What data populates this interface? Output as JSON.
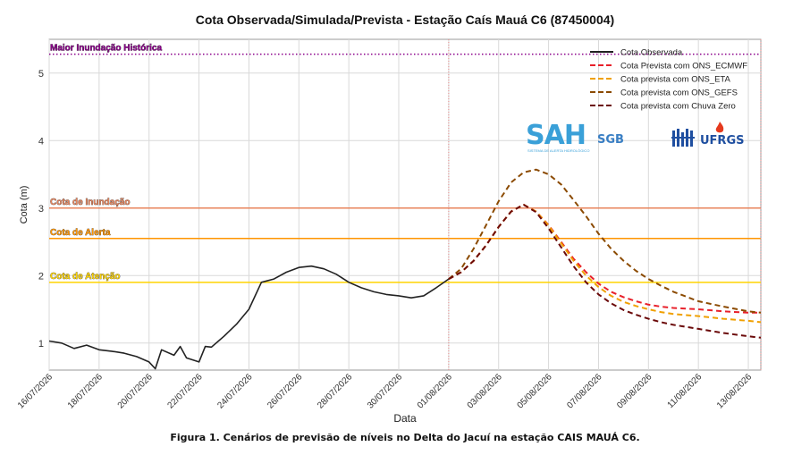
{
  "chart_data": {
    "type": "line",
    "title": "Cota Observada/Simulada/Prevista - Estação Caís Mauá C6 (87450004)",
    "xlabel": "Data",
    "ylabel": "Cota (m)",
    "x_ticks": [
      "16/07/2026",
      "18/07/2026",
      "20/07/2026",
      "22/07/2026",
      "24/07/2026",
      "26/07/2026",
      "28/07/2026",
      "30/07/2026",
      "01/08/2026",
      "03/08/2026",
      "05/08/2026",
      "07/08/2026",
      "09/08/2026",
      "11/08/2026",
      "13/08/2026"
    ],
    "y_ticks": [
      1,
      2,
      3,
      4,
      5
    ],
    "xlim": [
      "2026-07-16",
      "2026-08-13T12"
    ],
    "ylim": [
      0.6,
      5.5
    ],
    "grid": true,
    "legend_position": "top-right",
    "reference_lines": [
      {
        "label": "Maior Inundação Histórica",
        "y": 5.28,
        "color": "#8b008b",
        "style": "dotted"
      },
      {
        "label": "Cota de Inundação",
        "y": 3.0,
        "color": "#e8845c",
        "style": "solid"
      },
      {
        "label": "Cota de Alerta",
        "y": 2.55,
        "color": "#ff9500",
        "style": "solid"
      },
      {
        "label": "Cota de Atenção",
        "y": 1.9,
        "color": "#ffd400",
        "style": "solid"
      }
    ],
    "vertical_markers": [
      "2026-08-01",
      "2026-08-13T12"
    ],
    "series": [
      {
        "name": "Cota Observada",
        "color": "#222222",
        "style": "solid",
        "points": [
          [
            "2026-07-16",
            1.03
          ],
          [
            "2026-07-16T12",
            1.0
          ],
          [
            "2026-07-17",
            0.92
          ],
          [
            "2026-07-17T12",
            0.97
          ],
          [
            "2026-07-18",
            0.9
          ],
          [
            "2026-07-18T12",
            0.88
          ],
          [
            "2026-07-19",
            0.85
          ],
          [
            "2026-07-19T12",
            0.8
          ],
          [
            "2026-07-20",
            0.72
          ],
          [
            "2026-07-20T06",
            0.62
          ],
          [
            "2026-07-20T12",
            0.9
          ],
          [
            "2026-07-21",
            0.82
          ],
          [
            "2026-07-21T06",
            0.95
          ],
          [
            "2026-07-21T12",
            0.78
          ],
          [
            "2026-07-22",
            0.72
          ],
          [
            "2026-07-22T06",
            0.95
          ],
          [
            "2026-07-22T12",
            0.94
          ],
          [
            "2026-07-23",
            1.1
          ],
          [
            "2026-07-23T12",
            1.28
          ],
          [
            "2026-07-24",
            1.5
          ],
          [
            "2026-07-24T12",
            1.9
          ],
          [
            "2026-07-25",
            1.95
          ],
          [
            "2026-07-25T12",
            2.05
          ],
          [
            "2026-07-26",
            2.12
          ],
          [
            "2026-07-26T12",
            2.14
          ],
          [
            "2026-07-27",
            2.1
          ],
          [
            "2026-07-27T12",
            2.02
          ],
          [
            "2026-07-28",
            1.9
          ],
          [
            "2026-07-28T12",
            1.82
          ],
          [
            "2026-07-29",
            1.76
          ],
          [
            "2026-07-29T12",
            1.72
          ],
          [
            "2026-07-30",
            1.7
          ],
          [
            "2026-07-30T12",
            1.67
          ],
          [
            "2026-07-31",
            1.7
          ],
          [
            "2026-07-31T12",
            1.82
          ],
          [
            "2026-08-01",
            1.95
          ]
        ]
      },
      {
        "name": "Cota Prevista com ONS_ECMWF",
        "color": "#e8202a",
        "style": "dashed",
        "points": [
          [
            "2026-08-01",
            1.95
          ],
          [
            "2026-08-01T12",
            2.05
          ],
          [
            "2026-08-02",
            2.22
          ],
          [
            "2026-08-02T12",
            2.45
          ],
          [
            "2026-08-03",
            2.72
          ],
          [
            "2026-08-03T12",
            2.95
          ],
          [
            "2026-08-04",
            3.05
          ],
          [
            "2026-08-04T12",
            2.95
          ],
          [
            "2026-08-05",
            2.75
          ],
          [
            "2026-08-05T12",
            2.5
          ],
          [
            "2026-08-06",
            2.25
          ],
          [
            "2026-08-06T12",
            2.05
          ],
          [
            "2026-08-07",
            1.88
          ],
          [
            "2026-08-07T12",
            1.76
          ],
          [
            "2026-08-08",
            1.68
          ],
          [
            "2026-08-08T12",
            1.62
          ],
          [
            "2026-08-09",
            1.57
          ],
          [
            "2026-08-09T12",
            1.54
          ],
          [
            "2026-08-10",
            1.52
          ],
          [
            "2026-08-11",
            1.5
          ],
          [
            "2026-08-12",
            1.47
          ],
          [
            "2026-08-13",
            1.45
          ],
          [
            "2026-08-13T12",
            1.45
          ]
        ]
      },
      {
        "name": "Cota prevista com ONS_ETA",
        "color": "#f0a000",
        "style": "dashed",
        "points": [
          [
            "2026-08-01",
            1.95
          ],
          [
            "2026-08-01T12",
            2.05
          ],
          [
            "2026-08-02",
            2.22
          ],
          [
            "2026-08-02T12",
            2.45
          ],
          [
            "2026-08-03",
            2.72
          ],
          [
            "2026-08-03T12",
            2.95
          ],
          [
            "2026-08-04",
            3.05
          ],
          [
            "2026-08-04T12",
            2.95
          ],
          [
            "2026-08-05",
            2.74
          ],
          [
            "2026-08-05T12",
            2.48
          ],
          [
            "2026-08-06",
            2.22
          ],
          [
            "2026-08-06T12",
            2.0
          ],
          [
            "2026-08-07",
            1.83
          ],
          [
            "2026-08-07T12",
            1.7
          ],
          [
            "2026-08-08",
            1.61
          ],
          [
            "2026-08-08T12",
            1.55
          ],
          [
            "2026-08-09",
            1.5
          ],
          [
            "2026-08-09T12",
            1.46
          ],
          [
            "2026-08-10",
            1.43
          ],
          [
            "2026-08-11",
            1.4
          ],
          [
            "2026-08-12",
            1.36
          ],
          [
            "2026-08-13",
            1.33
          ],
          [
            "2026-08-13T12",
            1.31
          ]
        ]
      },
      {
        "name": "Cota prevista com ONS_GEFS",
        "color": "#8b4a00",
        "style": "dashed",
        "points": [
          [
            "2026-08-01",
            1.95
          ],
          [
            "2026-08-01T12",
            2.1
          ],
          [
            "2026-08-02",
            2.4
          ],
          [
            "2026-08-02T12",
            2.75
          ],
          [
            "2026-08-03",
            3.1
          ],
          [
            "2026-08-03T12",
            3.38
          ],
          [
            "2026-08-04",
            3.53
          ],
          [
            "2026-08-04T12",
            3.57
          ],
          [
            "2026-08-05",
            3.5
          ],
          [
            "2026-08-05T12",
            3.35
          ],
          [
            "2026-08-06",
            3.12
          ],
          [
            "2026-08-06T12",
            2.88
          ],
          [
            "2026-08-07",
            2.62
          ],
          [
            "2026-08-07T12",
            2.4
          ],
          [
            "2026-08-08",
            2.22
          ],
          [
            "2026-08-08T12",
            2.07
          ],
          [
            "2026-08-09",
            1.95
          ],
          [
            "2026-08-09T12",
            1.85
          ],
          [
            "2026-08-10",
            1.76
          ],
          [
            "2026-08-11",
            1.62
          ],
          [
            "2026-08-12",
            1.54
          ],
          [
            "2026-08-13",
            1.47
          ],
          [
            "2026-08-13T12",
            1.45
          ]
        ]
      },
      {
        "name": "Cota prevista com Chuva Zero",
        "color": "#6b0a0a",
        "style": "dashed",
        "points": [
          [
            "2026-08-01",
            1.95
          ],
          [
            "2026-08-01T12",
            2.05
          ],
          [
            "2026-08-02",
            2.22
          ],
          [
            "2026-08-02T12",
            2.45
          ],
          [
            "2026-08-03",
            2.72
          ],
          [
            "2026-08-03T12",
            2.95
          ],
          [
            "2026-08-04",
            3.05
          ],
          [
            "2026-08-04T12",
            2.94
          ],
          [
            "2026-08-05",
            2.7
          ],
          [
            "2026-08-05T12",
            2.42
          ],
          [
            "2026-08-06",
            2.14
          ],
          [
            "2026-08-06T12",
            1.9
          ],
          [
            "2026-08-07",
            1.72
          ],
          [
            "2026-08-07T12",
            1.59
          ],
          [
            "2026-08-08",
            1.49
          ],
          [
            "2026-08-08T12",
            1.42
          ],
          [
            "2026-08-09",
            1.36
          ],
          [
            "2026-08-09T12",
            1.31
          ],
          [
            "2026-08-10",
            1.27
          ],
          [
            "2026-08-11",
            1.21
          ],
          [
            "2026-08-12",
            1.15
          ],
          [
            "2026-08-13",
            1.1
          ],
          [
            "2026-08-13T12",
            1.08
          ]
        ]
      }
    ]
  },
  "logos": {
    "sah": "SAH",
    "sah_sub": "SISTEMA DE ALERTA HIDROLÓGICO",
    "sgb": "SGB",
    "ufrgs": "UFRGS"
  },
  "caption": "Figura 1. Cenários de previsão de níveis no Delta do Jacuí na estação CAIS MAUÁ C6."
}
